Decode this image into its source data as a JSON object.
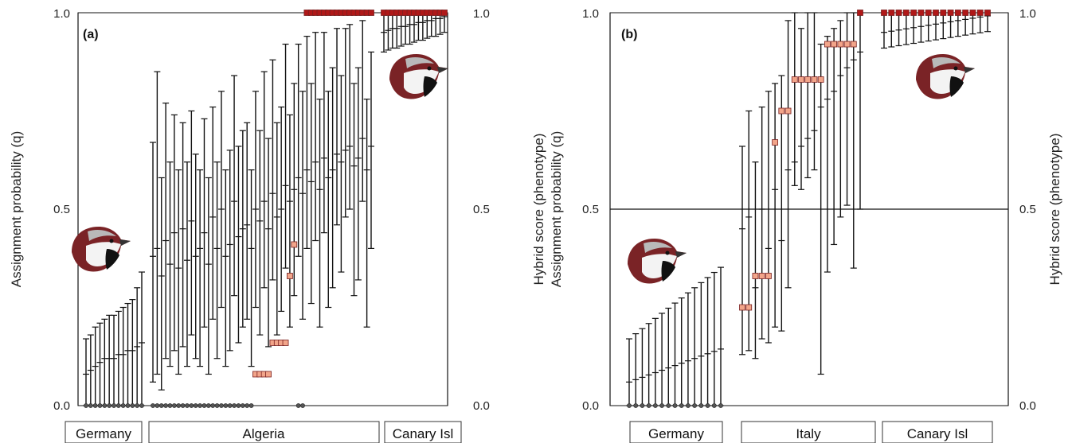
{
  "chart_data": [
    {
      "type": "scatter",
      "panel_label": "(a)",
      "ylabel_left": "Assignment probability (q)",
      "ylim": [
        0,
        1
      ],
      "yticks_left": [
        "0.0",
        "0.5",
        "1.0"
      ],
      "yticks_right": [
        "0.0",
        "0.5",
        "1.0"
      ],
      "groups": [
        {
          "name": "Germany",
          "n": 13
        },
        {
          "name": "Algeria",
          "n": 52
        },
        {
          "name": "Canary Isl",
          "n": 15
        }
      ],
      "series": [
        {
          "name": "",
          "kind": "q_with_90pct_interval",
          "q": [
            0.08,
            0.09,
            0.1,
            0.11,
            0.12,
            0.12,
            0.12,
            0.13,
            0.13,
            0.14,
            0.14,
            0.15,
            0.16,
            0.38,
            0.4,
            0.33,
            0.42,
            0.36,
            0.44,
            0.35,
            0.45,
            0.37,
            0.47,
            0.38,
            0.4,
            0.44,
            0.36,
            0.48,
            0.4,
            0.5,
            0.38,
            0.41,
            0.52,
            0.43,
            0.45,
            0.46,
            0.4,
            0.5,
            0.47,
            0.52,
            0.45,
            0.54,
            0.48,
            0.5,
            0.56,
            0.52,
            0.55,
            0.58,
            0.54,
            0.6,
            0.57,
            0.62,
            0.55,
            0.63,
            0.58,
            0.6,
            0.64,
            0.62,
            0.65,
            0.66,
            0.61,
            0.63,
            0.68,
            0.6,
            0.66,
            0.95,
            0.955,
            0.96,
            0.96,
            0.965,
            0.965,
            0.97,
            0.97,
            0.975,
            0.975,
            0.98,
            0.98,
            0.985,
            0.985,
            0.99
          ],
          "lower": [
            0.0,
            0.0,
            0.0,
            0.0,
            0.0,
            0.0,
            0.0,
            0.0,
            0.0,
            0.0,
            0.0,
            0.0,
            0.0,
            0.06,
            0.08,
            0.04,
            0.12,
            0.1,
            0.14,
            0.08,
            0.15,
            0.1,
            0.18,
            0.12,
            0.1,
            0.2,
            0.08,
            0.22,
            0.12,
            0.25,
            0.1,
            0.14,
            0.28,
            0.16,
            0.2,
            0.22,
            0.1,
            0.25,
            0.18,
            0.3,
            0.15,
            0.32,
            0.18,
            0.24,
            0.35,
            0.2,
            0.28,
            0.38,
            0.22,
            0.4,
            0.26,
            0.42,
            0.2,
            0.44,
            0.25,
            0.3,
            0.46,
            0.34,
            0.48,
            0.5,
            0.28,
            0.32,
            0.52,
            0.2,
            0.4,
            0.9,
            0.905,
            0.91,
            0.91,
            0.915,
            0.92,
            0.92,
            0.925,
            0.93,
            0.93,
            0.935,
            0.94,
            0.94,
            0.945,
            0.95
          ],
          "upper": [
            0.17,
            0.18,
            0.2,
            0.21,
            0.22,
            0.23,
            0.23,
            0.24,
            0.25,
            0.26,
            0.27,
            0.3,
            0.34,
            0.67,
            0.85,
            0.58,
            0.77,
            0.62,
            0.74,
            0.6,
            0.72,
            0.62,
            0.75,
            0.64,
            0.6,
            0.73,
            0.58,
            0.76,
            0.62,
            0.8,
            0.6,
            0.65,
            0.84,
            0.66,
            0.7,
            0.72,
            0.6,
            0.8,
            0.7,
            0.85,
            0.68,
            0.88,
            0.72,
            0.76,
            0.92,
            0.74,
            0.82,
            0.92,
            0.8,
            0.94,
            0.82,
            0.95,
            0.78,
            0.95,
            0.8,
            0.86,
            0.96,
            0.84,
            0.96,
            0.97,
            0.82,
            0.86,
            0.98,
            0.78,
            0.9,
            1.0,
            1.0,
            1.0,
            1.0,
            1.0,
            1.0,
            1.0,
            1.0,
            1.0,
            1.0,
            1.0,
            1.0,
            1.0,
            1.0,
            1.0
          ]
        },
        {
          "name": "",
          "kind": "hybrid_score_phenotype",
          "color": "#f2a58a",
          "values_by_group": {
            "Germany": 0.0,
            "Algeria": [
              0.0,
              0.0,
              0.0,
              0.0,
              0.0,
              0.0,
              0.0,
              0.0,
              0.0,
              0.0,
              0.0,
              0.0,
              0.0,
              0.0,
              0.0,
              0.0,
              0.0,
              0.0,
              0.0,
              0.0,
              0.0,
              0.0,
              0.0,
              0.0,
              0.08,
              0.08,
              0.08,
              0.08,
              0.16,
              0.16,
              0.16,
              0.16,
              0.33,
              0.41,
              0.0,
              0.0,
              1.0,
              1.0,
              1.0,
              1.0,
              1.0,
              1.0,
              1.0,
              1.0,
              1.0,
              1.0,
              1.0,
              1.0,
              1.0,
              1.0,
              1.0,
              1.0
            ],
            "Canary Isl": 1.0
          }
        }
      ],
      "colors": {
        "interval": "#111111",
        "hybrid_low": "#f2a58a",
        "hybrid_high": "#b01818",
        "hybrid_zero": "#555555"
      }
    },
    {
      "type": "scatter",
      "panel_label": "(b)",
      "ylabel_left_lines": [
        "Hybrid score (phenotype)",
        "Assignment probability (q)"
      ],
      "ylabel_right": "Hybrid score (phenotype)",
      "ylim": [
        0,
        1
      ],
      "yticks_left": [
        "0.0",
        "0.5",
        "1.0"
      ],
      "yticks_right": [
        "0.0",
        "0.5",
        "1.0"
      ],
      "reference_line": 0.5,
      "groups": [
        {
          "name": "Germany",
          "n": 15
        },
        {
          "name": "Italy",
          "n": 19
        },
        {
          "name": "Canary Isl",
          "n": 15
        }
      ],
      "colors": {
        "interval": "#111111",
        "hybrid_low": "#f2a58a",
        "hybrid_high": "#b01818",
        "hybrid_zero": "#555555"
      }
    }
  ],
  "labels": {
    "panel_a_tag": "(a)",
    "panel_b_tag": "(b)",
    "a_ylabel": "Assignment probability (q)",
    "b_ylabel_line1": "Hybrid score (phenotype)",
    "b_ylabel_line2": "Assignment probability (q)",
    "b_ylabel_right": "Hybrid score (phenotype)",
    "tick_0": "0.0",
    "tick_05": "0.5",
    "tick_1": "1.0",
    "group_germany": "Germany",
    "group_algeria": "Algeria",
    "group_canary": "Canary Isl",
    "group_italy": "Italy"
  },
  "icons": [
    "sparrow-head-icon"
  ]
}
